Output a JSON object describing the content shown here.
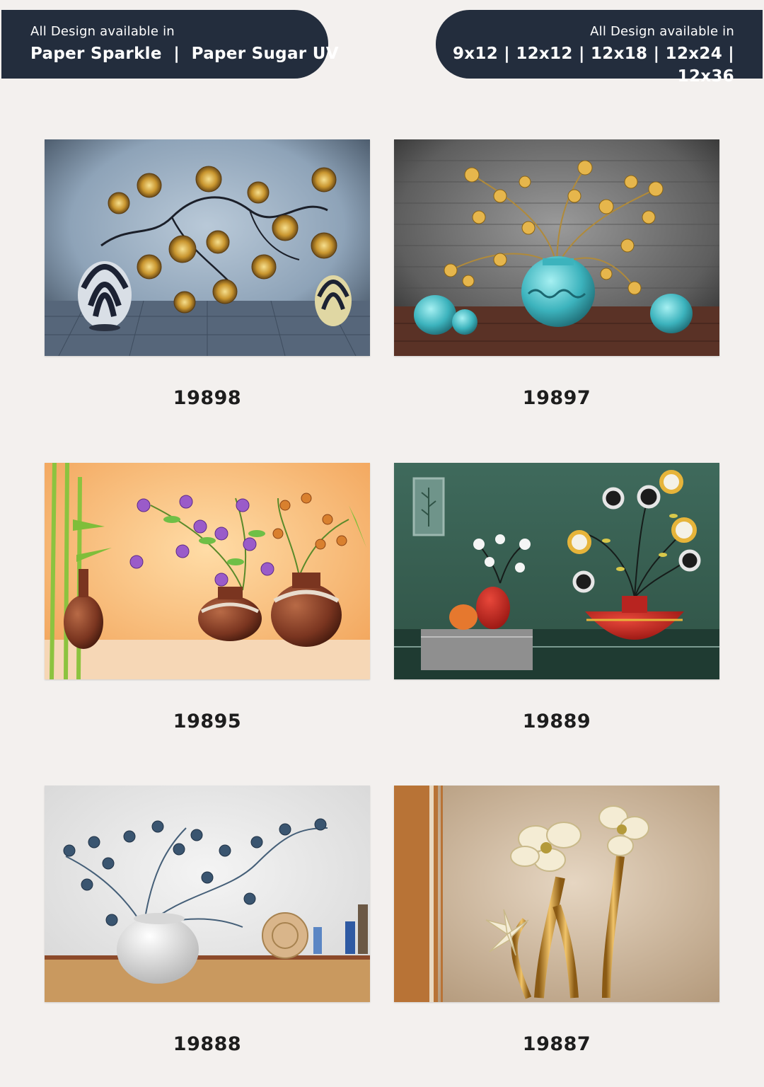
{
  "header": {
    "left": {
      "small": "All Design available in",
      "big": "Paper Sparkle  |  Paper Sugar UV"
    },
    "right": {
      "small": "All Design available in",
      "big": "9x12 | 12x12 | 12x18 | 12x24 | 12x36"
    }
  },
  "designs": [
    {
      "code": "19898"
    },
    {
      "code": "19897"
    },
    {
      "code": "19895"
    },
    {
      "code": "19889"
    },
    {
      "code": "19888"
    },
    {
      "code": "19887"
    }
  ],
  "colors": {
    "header_bg": "#232d3d",
    "page_bg": "#f3f0ee"
  }
}
